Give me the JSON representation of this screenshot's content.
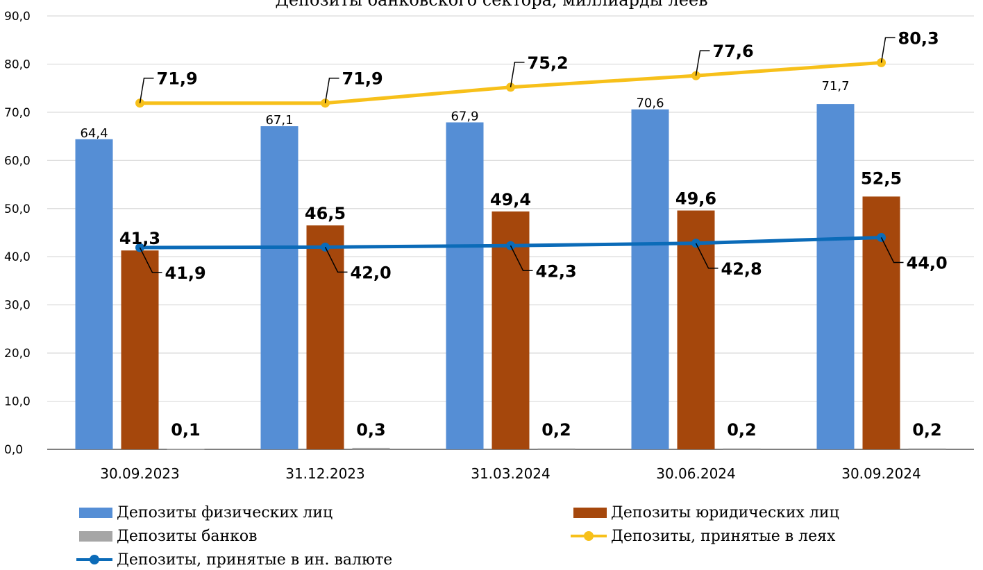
{
  "chart_data": {
    "type": "bar",
    "title": "Депозиты банковского сектора, миллиарды леев",
    "categories": [
      "30.09.2023",
      "31.12.2023",
      "31.03.2024",
      "30.06.2024",
      "30.09.2024"
    ],
    "ylim": [
      0,
      90
    ],
    "yticks": [
      "0,0",
      "10,0",
      "20,0",
      "30,0",
      "40,0",
      "50,0",
      "60,0",
      "70,0",
      "80,0",
      "90,0"
    ],
    "grid": true,
    "legend_position": "bottom",
    "bar_series": [
      {
        "name": "Депозиты физических лиц",
        "color": "#558ed5",
        "values": [
          64.4,
          67.1,
          67.9,
          70.6,
          71.7
        ],
        "labels": [
          "64,4",
          "67,1",
          "67,9",
          "70,6",
          "71,7"
        ]
      },
      {
        "name": "Депозиты юридических лиц",
        "color": "#a5470c",
        "values": [
          41.3,
          46.5,
          49.4,
          49.6,
          52.5
        ],
        "labels": [
          "41,3",
          "46,5",
          "49,4",
          "49,6",
          "52,5"
        ]
      },
      {
        "name": "Депозиты банков",
        "color": "#a6a6a6",
        "values": [
          0.1,
          0.3,
          0.2,
          0.2,
          0.2
        ],
        "labels": [
          "0,1",
          "0,3",
          "0,2",
          "0,2",
          "0,2"
        ]
      }
    ],
    "line_series": [
      {
        "name": "Депозиты, принятые в леях",
        "color": "#f7c01a",
        "values": [
          71.9,
          71.9,
          75.2,
          77.6,
          80.3
        ],
        "labels": [
          "71,9",
          "71,9",
          "75,2",
          "77,6",
          "80,3"
        ]
      },
      {
        "name": "Депозиты, принятые в ин. валюте",
        "color": "#0b6bb8",
        "values": [
          41.9,
          42.0,
          42.3,
          42.8,
          44.0
        ],
        "labels": [
          "41,9",
          "42,0",
          "42,3",
          "42,8",
          "44,0"
        ]
      }
    ]
  }
}
